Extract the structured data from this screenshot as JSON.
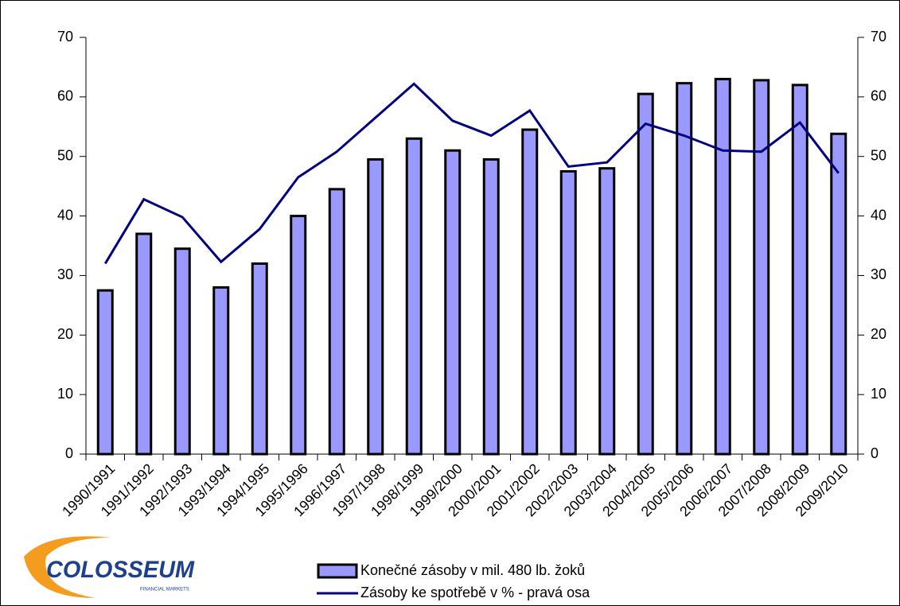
{
  "chart_data": {
    "type": "bar_line",
    "categories": [
      "1990/1991",
      "1991/1992",
      "1992/1993",
      "1993/1994",
      "1994/1995",
      "1995/1996",
      "1996/1997",
      "1997/1998",
      "1998/1999",
      "1999/2000",
      "2000/2001",
      "2001/2002",
      "2002/2003",
      "2003/2004",
      "2004/2005",
      "2005/2006",
      "2006/2007",
      "2007/2008",
      "2008/2009",
      "2009/2010"
    ],
    "series": [
      {
        "name": "Konečné zásoby v mil. 480 lb. žoků",
        "color": "#9999ff",
        "kind": "bar",
        "values": [
          27.5,
          37,
          34.5,
          28,
          32,
          40,
          44.5,
          49.5,
          53,
          51,
          49.5,
          54.5,
          47.5,
          48,
          60.5,
          62.3,
          63,
          62.8,
          62,
          53.8
        ]
      },
      {
        "name": "Zásoby ke spotřebě v % - pravá osa",
        "color": "#000080",
        "kind": "line",
        "axis": "y2",
        "values": [
          32,
          42.8,
          39.8,
          32.3,
          37.8,
          46.5,
          50.8,
          56.5,
          62.2,
          56,
          53.5,
          57.7,
          48.3,
          49,
          55.5,
          53.5,
          51,
          50.8,
          55.7,
          47.2
        ]
      }
    ],
    "ylim": [
      0,
      70
    ],
    "yticks": [
      0,
      10,
      20,
      30,
      40,
      50,
      60,
      70
    ],
    "y2lim": [
      0,
      70
    ],
    "y2ticks": [
      0,
      10,
      20,
      30,
      40,
      50,
      60,
      70
    ],
    "logo": {
      "name": "COLOSSEUM",
      "tagline": "FINANCIAL MARKETS"
    }
  }
}
